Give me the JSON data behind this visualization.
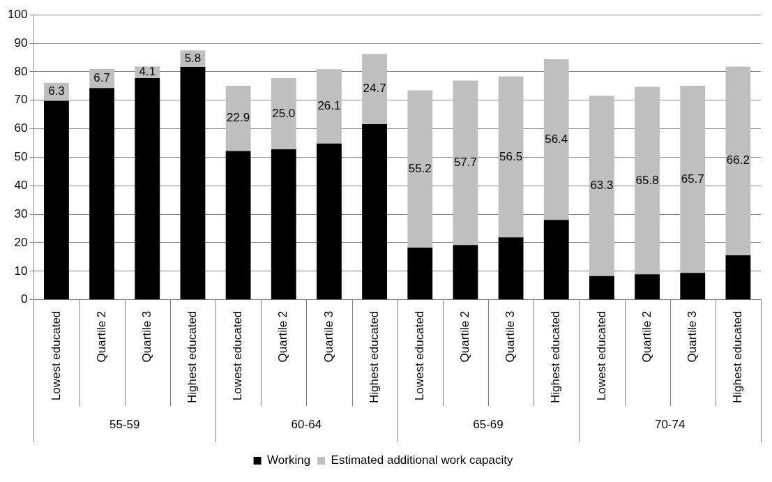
{
  "chart_data": {
    "type": "bar",
    "stacked": true,
    "categories": [
      "Lowest educated",
      "Quartile 2",
      "Quartile 3",
      "Highest educated",
      "Lowest educated",
      "Quartile 2",
      "Quartile 3",
      "Highest educated",
      "Lowest educated",
      "Quartile 2",
      "Quartile 3",
      "Highest educated",
      "Lowest educated",
      "Quartile 2",
      "Quartile 3",
      "Highest educated"
    ],
    "annotations": [
      "55-59",
      "60-64",
      "65-69",
      "70-74"
    ],
    "series": [
      {
        "name": "Working",
        "color": "#000000",
        "values": [
          69.8,
          74.3,
          77.8,
          81.7,
          52.2,
          52.8,
          54.8,
          61.6,
          18.3,
          19.2,
          21.9,
          28.0,
          8.3,
          8.9,
          9.4,
          15.6
        ]
      },
      {
        "name": "Estimated additional work capacity",
        "color": "#bfbfbf",
        "values": [
          6.3,
          6.7,
          4.1,
          5.8,
          22.9,
          25.0,
          26.1,
          24.7,
          55.2,
          57.7,
          56.5,
          56.4,
          63.3,
          65.8,
          65.7,
          66.2
        ],
        "value_labels": [
          "6.3",
          "6.7",
          "4.1",
          "5.8",
          "22.9",
          "25.0",
          "26.1",
          "24.7",
          "55.2",
          "57.7",
          "56.5",
          "56.4",
          "63.3",
          "65.8",
          "65.7",
          "66.2"
        ]
      }
    ],
    "ylim": [
      0,
      100
    ],
    "yticks": [
      0,
      10,
      20,
      30,
      40,
      50,
      60,
      70,
      80,
      90,
      100
    ],
    "grid": "y",
    "legend": "bottom"
  }
}
